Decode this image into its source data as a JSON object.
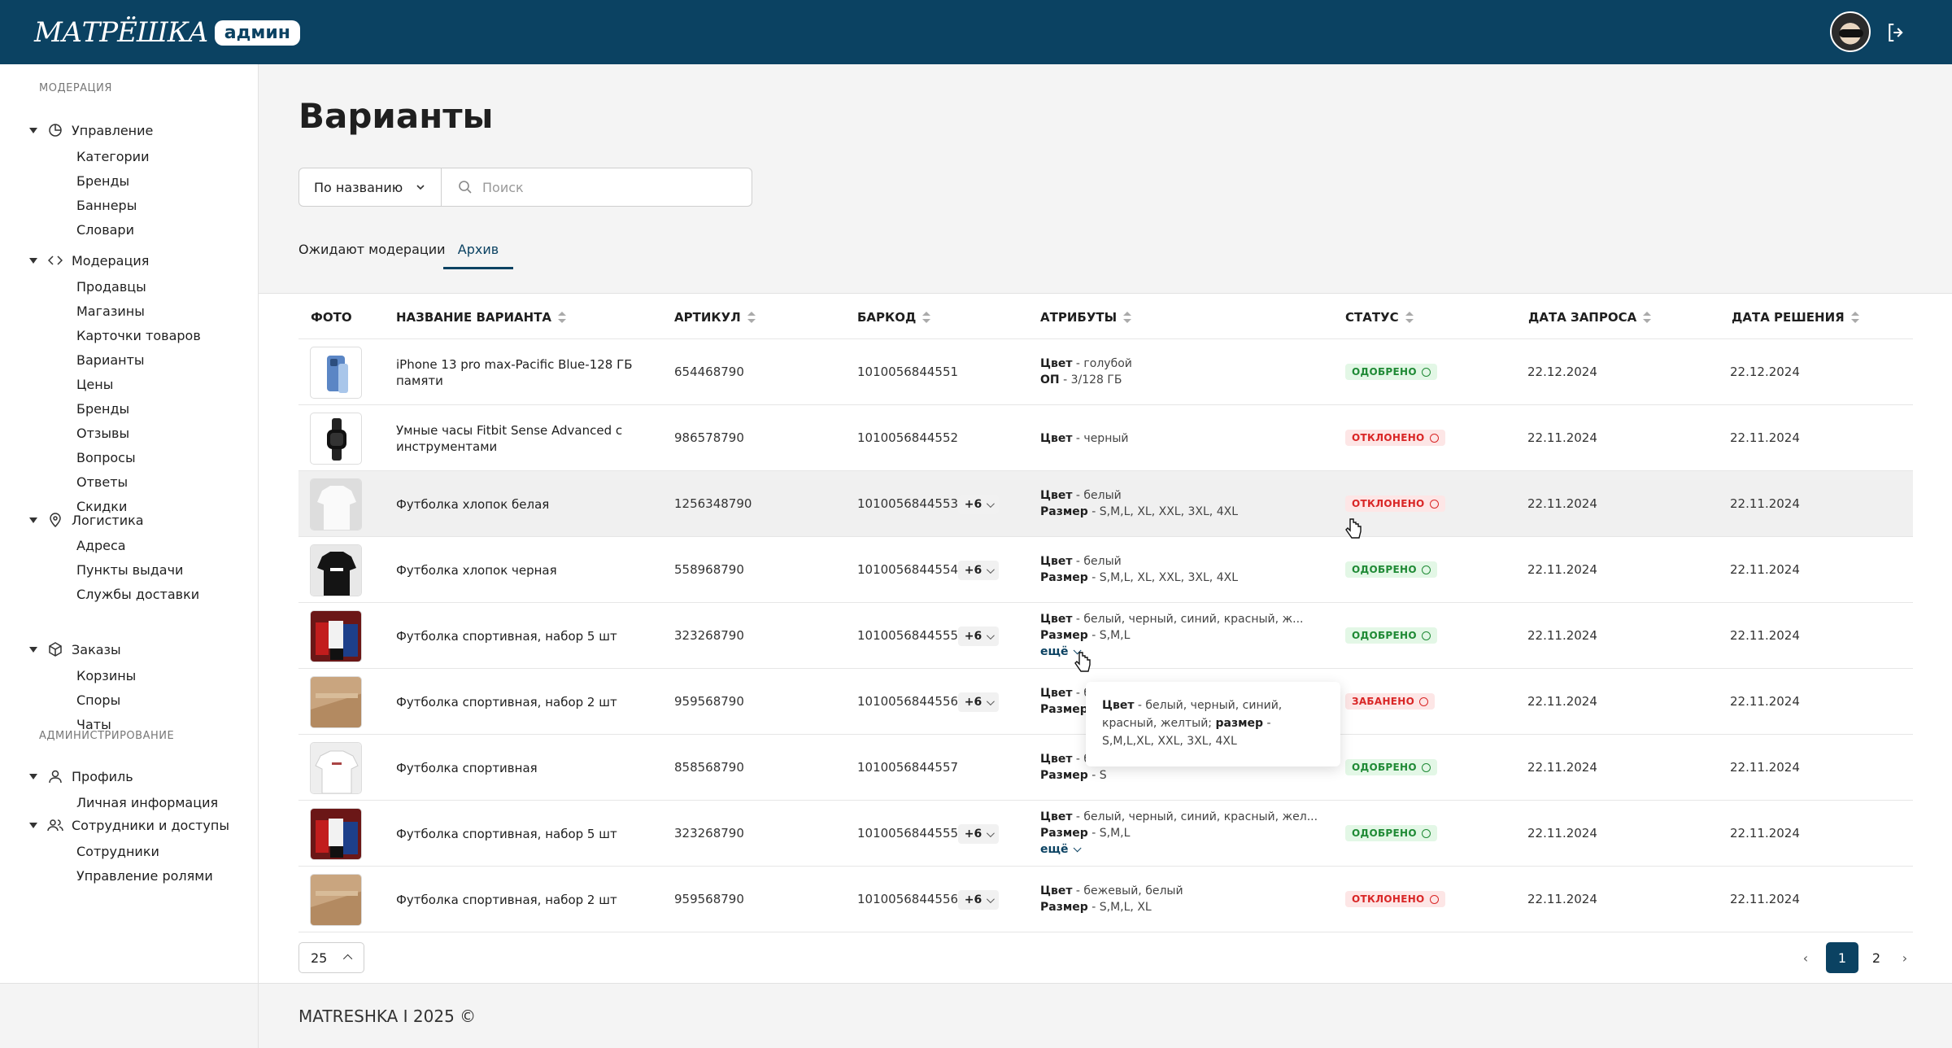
{
  "header": {
    "logo_text": "МАТРЁШКА",
    "logo_badge": "админ"
  },
  "sidebar": {
    "section_moderation": "МОДЕРАЦИЯ",
    "section_admin": "АДМИНИСТРИРОВАНИЕ",
    "groups": [
      {
        "label": "Управление",
        "icon": "pie-chart-icon",
        "items": [
          "Категории",
          "Бренды",
          "Баннеры",
          "Словари"
        ]
      },
      {
        "label": "Модерация",
        "icon": "code-icon",
        "items": [
          "Продавцы",
          "Магазины",
          "Карточки товаров",
          "Варианты",
          "Цены",
          "Бренды",
          "Отзывы",
          "Вопросы",
          "Ответы",
          "Скидки"
        ]
      },
      {
        "label": "Логистика",
        "icon": "location-pin-icon",
        "items": [
          "Адреса",
          "Пункты выдачи",
          "Службы доставки"
        ]
      },
      {
        "label": "Заказы",
        "icon": "box-icon",
        "items": [
          "Корзины",
          "Споры",
          "Чаты"
        ]
      },
      {
        "label": "Профиль",
        "icon": "user-icon",
        "items": [
          "Личная информация"
        ]
      },
      {
        "label": "Сотрудники и доступы",
        "icon": "users-icon",
        "items": [
          "Сотрудники",
          "Управление ролями"
        ]
      }
    ]
  },
  "page": {
    "title": "Варианты",
    "filter_select": "По названию",
    "search_placeholder": "Поиск",
    "tabs": [
      "Ожидают модерации",
      "Архив"
    ],
    "active_tab": "Архив"
  },
  "table": {
    "columns": [
      "ФОТО",
      "НАЗВАНИЕ ВАРИАНТА",
      "АРТИКУЛ",
      "БАРКОД",
      "АТРИБУТЫ",
      "СТАТУС",
      "ДАТА ЗАПРОСА",
      "ДАТА РЕШЕНИЯ"
    ],
    "rows": [
      {
        "name": "iPhone 13 pro max-Pacific Blue-128 ГБ памяти",
        "article": "654468790",
        "barcode": "1010056844551",
        "more": "",
        "attr1_k": "Цвет",
        "attr1_v": " - голубой",
        "attr2_k": "ОП",
        "attr2_v": " - 3/128 ГБ",
        "link": "",
        "status": "ОДОБРЕНО",
        "status_type": "ok",
        "date_req": "22.12.2024",
        "date_dec": "22.12.2024",
        "thumb": "phone"
      },
      {
        "name": "Умные часы Fitbit Sense Advanced с инструментами",
        "article": "986578790",
        "barcode": "1010056844552",
        "more": "",
        "attr1_k": "Цвет",
        "attr1_v": " - черный",
        "attr2_k": "",
        "attr2_v": "",
        "link": "",
        "status": "ОТКЛОНЕНО",
        "status_type": "rej",
        "date_req": "22.11.2024",
        "date_dec": "22.11.2024",
        "thumb": "watch"
      },
      {
        "name": "Футболка хлопок белая",
        "article": "1256348790",
        "barcode": "1010056844553",
        "more": "+6",
        "attr1_k": "Цвет",
        "attr1_v": " - белый",
        "attr2_k": "Размер",
        "attr2_v": " - S,M,L, XL, XXL, 3XL, 4XL",
        "link": "",
        "status": "ОТКЛОНЕНО",
        "status_type": "rej",
        "date_req": "22.11.2024",
        "date_dec": "22.11.2024",
        "thumb": "white-tee"
      },
      {
        "name": "Футболка хлопок черная",
        "article": "558968790",
        "barcode": "1010056844554",
        "more": "+6",
        "attr1_k": "Цвет",
        "attr1_v": " - белый",
        "attr2_k": "Размер",
        "attr2_v": " - S,M,L, XL, XXL, 3XL, 4XL",
        "link": "",
        "status": "ОДОБРЕНО",
        "status_type": "ok",
        "date_req": "22.11.2024",
        "date_dec": "22.11.2024",
        "thumb": "black-tee"
      },
      {
        "name": "Футболка спортивная, набор 5 шт",
        "article": "323268790",
        "barcode": "1010056844555",
        "more": "+6",
        "attr1_k": "Цвет",
        "attr1_v": " - белый, черный, синий, красный, ж...",
        "attr2_k": "Размер",
        "attr2_v": " - S,M,L",
        "link": "ещё",
        "status": "ОДОБРЕНО",
        "status_type": "ok",
        "date_req": "22.11.2024",
        "date_dec": "22.11.2024",
        "thumb": "set"
      },
      {
        "name": "Футболка спортивная, набор 2 шт",
        "article": "959568790",
        "barcode": "1010056844556",
        "more": "+6",
        "attr1_k": "Цвет",
        "attr1_v": " - б",
        "attr2_k": "Размер",
        "attr2_v": "",
        "link": "",
        "status": "ЗАБАНЕНО",
        "status_type": "ban",
        "date_req": "22.11.2024",
        "date_dec": "22.11.2024",
        "thumb": "beige"
      },
      {
        "name": "Футболка спортивная",
        "article": "858568790",
        "barcode": "1010056844557",
        "more": "",
        "attr1_k": "Цвет",
        "attr1_v": " - б",
        "attr2_k": "Размер",
        "attr2_v": " - S",
        "link": "",
        "status": "ОДОБРЕНО",
        "status_type": "ok",
        "date_req": "22.11.2024",
        "date_dec": "22.11.2024",
        "thumb": "white-tee2"
      },
      {
        "name": "Футболка спортивная, набор 5 шт",
        "article": "323268790",
        "barcode": "1010056844555",
        "more": "+6",
        "attr1_k": "Цвет",
        "attr1_v": " - белый, черный, синий, красный, жел...",
        "attr2_k": "Размер",
        "attr2_v": " - S,M,L",
        "link": "ещё",
        "status": "ОДОБРЕНО",
        "status_type": "ok",
        "date_req": "22.11.2024",
        "date_dec": "22.11.2024",
        "thumb": "set"
      },
      {
        "name": "Футболка спортивная, набор 2 шт",
        "article": "959568790",
        "barcode": "1010056844556",
        "more": "+6",
        "attr1_k": "Цвет",
        "attr1_v": " - бежевый, белый",
        "attr2_k": "Размер",
        "attr2_v": " - S,M,L, XL",
        "link": "",
        "status": "ОТКЛОНЕНО",
        "status_type": "rej",
        "date_req": "22.11.2024",
        "date_dec": "22.11.2024",
        "thumb": "beige"
      }
    ]
  },
  "tooltip": {
    "k1": "Цвет",
    "v1": " - белый, черный, синий, красный, желтый;",
    "k2": "размер",
    "v2": " - S,M,L,XL, XXL, 3XL, 4XL"
  },
  "pagination": {
    "per_page": "25",
    "pages": [
      "1",
      "2"
    ],
    "current": "1",
    "prev": "‹",
    "next": "›"
  },
  "footer": {
    "text": "MATRESHKA I 2025 ©"
  },
  "colors": {
    "brand": "#0b4262",
    "approved": "#1f8a35",
    "rejected": "#d92626"
  }
}
